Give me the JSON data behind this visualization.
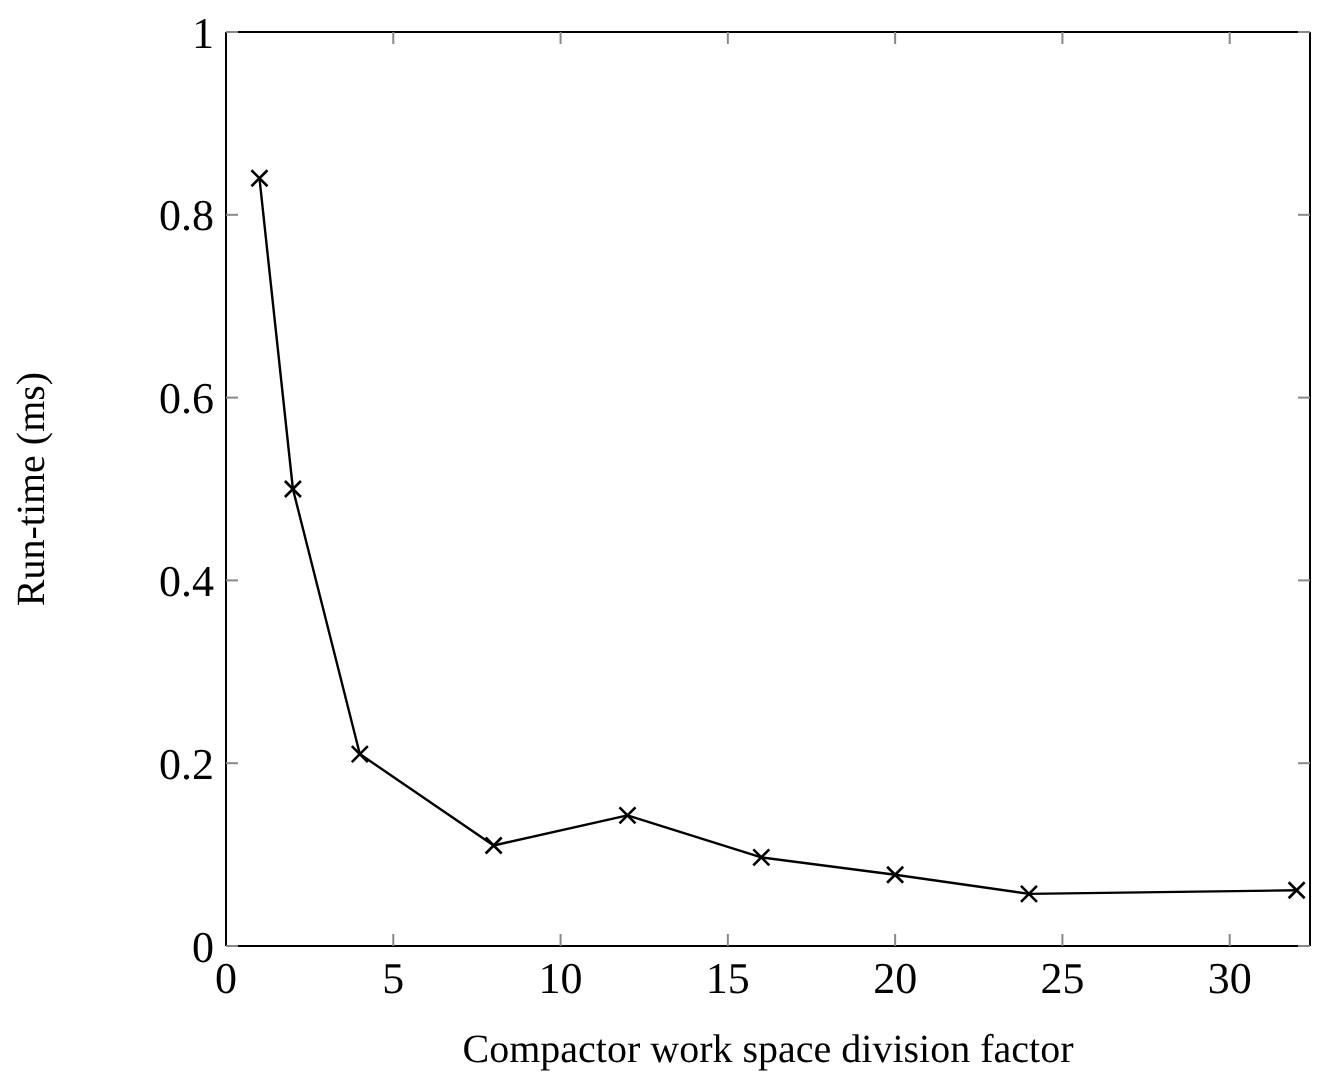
{
  "chart_data": {
    "type": "line",
    "xlabel": "Compactor work space division factor",
    "ylabel": "Run-time (ms)",
    "x": [
      1,
      2,
      4,
      8,
      12,
      16,
      20,
      24,
      32
    ],
    "series": [
      {
        "color": "#000000",
        "values": [
          0.84,
          0.5,
          0.21,
          0.11,
          0.143,
          0.097,
          0.078,
          0.057,
          0.061
        ]
      }
    ],
    "xlim": [
      0,
      32.4
    ],
    "xticks": [
      0,
      5,
      10,
      15,
      20,
      25,
      30
    ],
    "ylim": [
      0,
      1
    ],
    "yticks": [
      0,
      0.2,
      0.4,
      0.6,
      0.8,
      1
    ],
    "grid": false,
    "legend": false,
    "marker": "cross",
    "line_style": "solid"
  }
}
